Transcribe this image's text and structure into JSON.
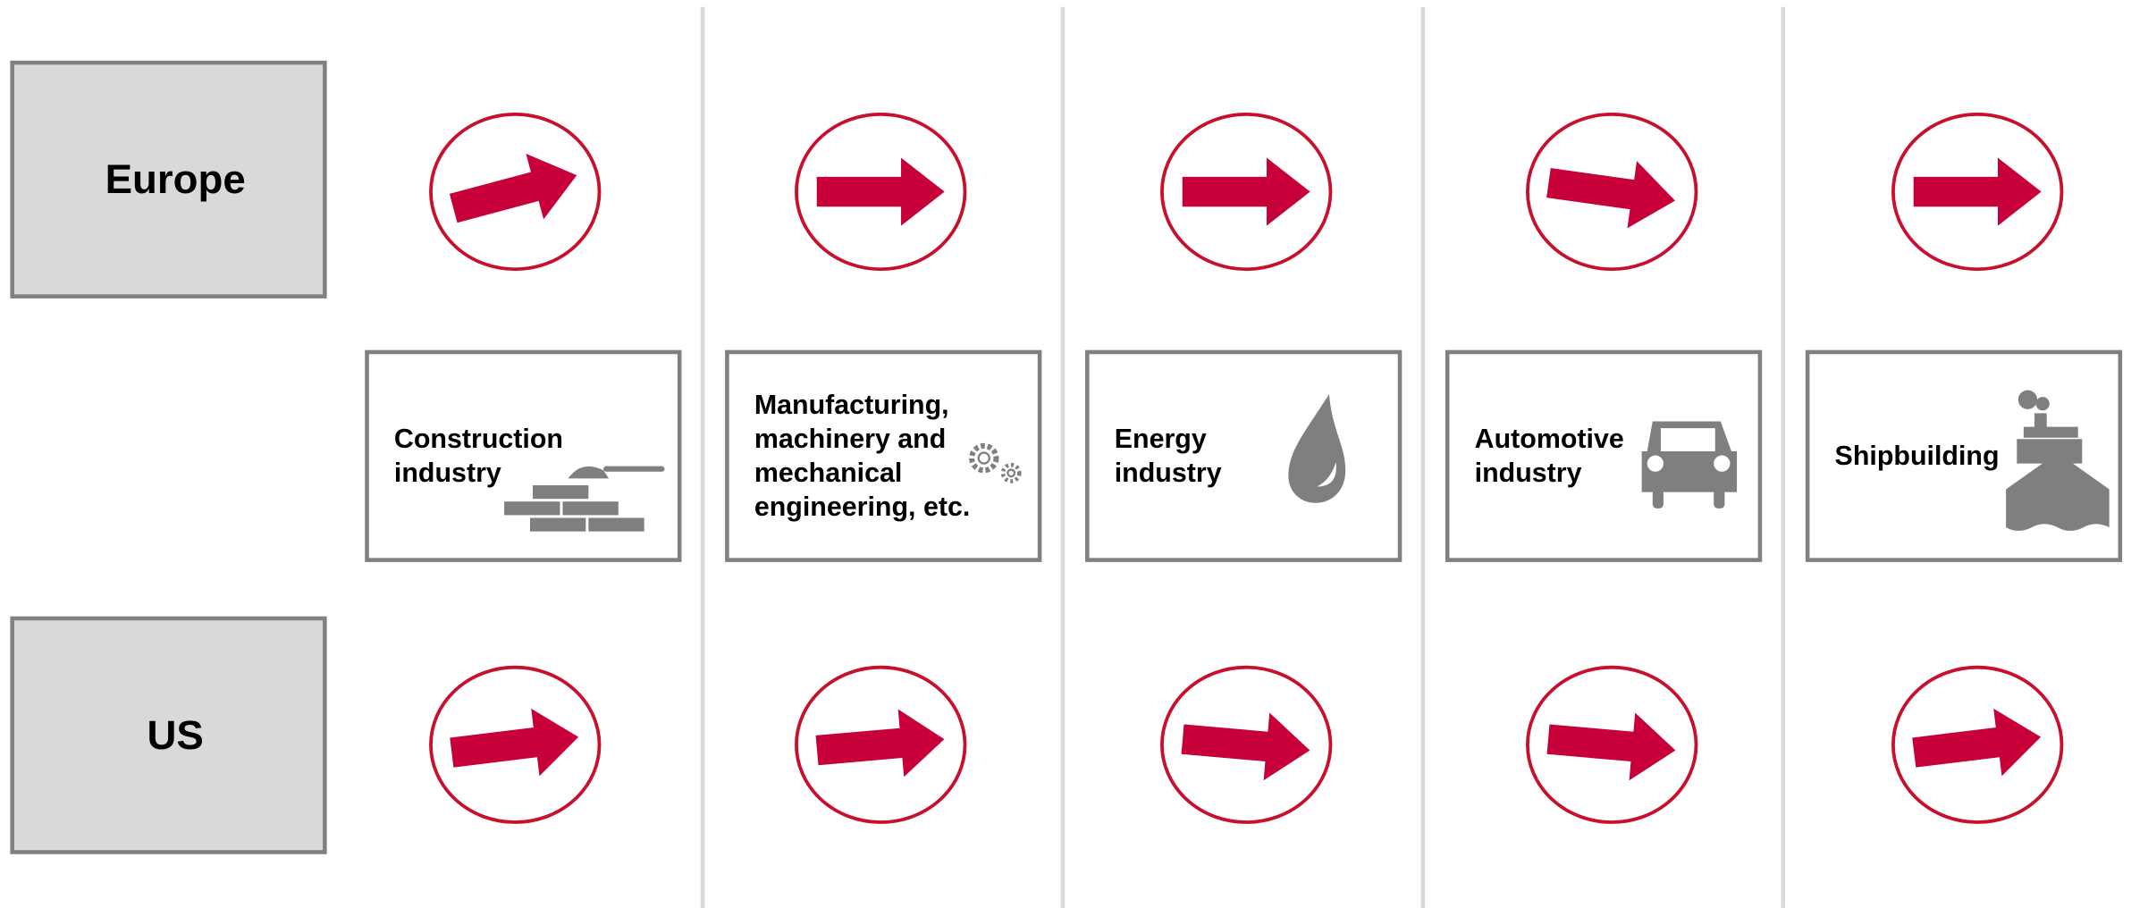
{
  "regions": [
    "Europe",
    "US"
  ],
  "industries": [
    {
      "label": [
        "Construction",
        "industry"
      ]
    },
    {
      "label": [
        "Manufacturing,",
        "machinery and",
        "mechanical",
        "engineering, etc."
      ]
    },
    {
      "label": [
        "Energy",
        "industry"
      ]
    },
    {
      "label": [
        "Automotive",
        "industry"
      ]
    },
    {
      "label": [
        "Shipbuilding"
      ]
    }
  ]
}
